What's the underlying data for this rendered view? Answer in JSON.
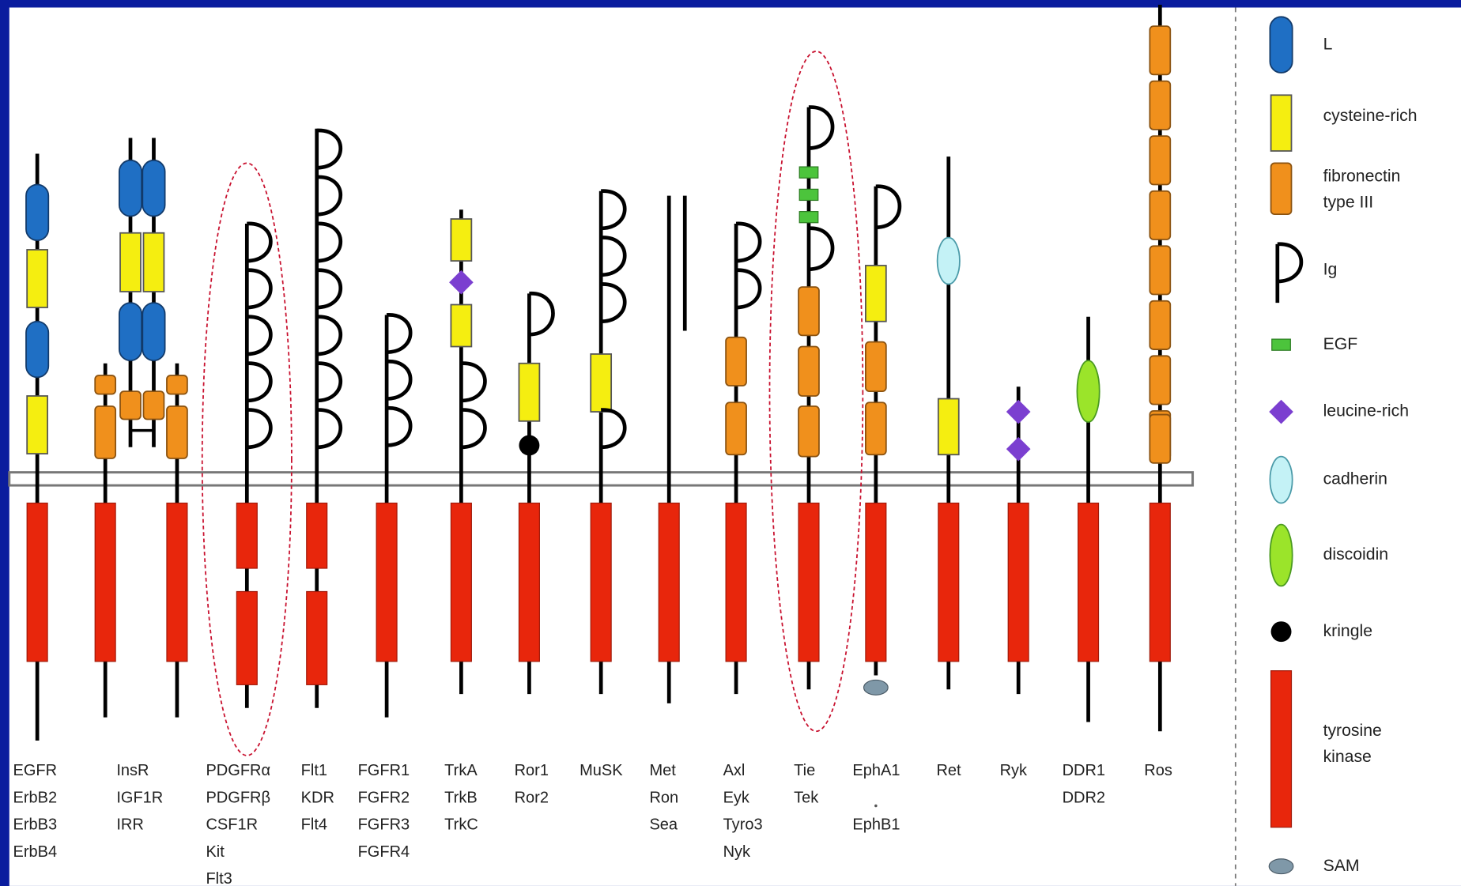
{
  "families": [
    {
      "labels": [
        "EGFR",
        "ErbB2",
        "ErbB3",
        "ErbB4"
      ]
    },
    {
      "labels": [
        "InsR",
        "IGF1R",
        "IRR"
      ]
    },
    {
      "labels": [
        "PDGFRα",
        "PDGFRβ",
        "CSF1R",
        "Kit",
        "Flt3"
      ]
    },
    {
      "labels": [
        "Flt1",
        "KDR",
        "Flt4"
      ]
    },
    {
      "labels": [
        "FGFR1",
        "FGFR2",
        "FGFR3",
        "FGFR4"
      ]
    },
    {
      "labels": [
        "TrkA",
        "TrkB",
        "TrkC"
      ]
    },
    {
      "labels": [
        "Ror1",
        "Ror2"
      ]
    },
    {
      "labels": [
        "MuSK"
      ]
    },
    {
      "labels": [
        "Met",
        "Ron",
        "Sea"
      ]
    },
    {
      "labels": [
        "Axl",
        "Eyk",
        "Tyro3",
        "Nyk"
      ]
    },
    {
      "labels": [
        "Tie",
        "Tek"
      ]
    },
    {
      "labels": [
        "EphA1",
        "EphB1"
      ]
    },
    {
      "labels": [
        "Ret"
      ]
    },
    {
      "labels": [
        "Ryk"
      ]
    },
    {
      "labels": [
        "DDR1",
        "DDR2"
      ]
    },
    {
      "labels": [
        "Ros"
      ]
    }
  ],
  "legend": [
    {
      "label": [
        "L"
      ]
    },
    {
      "label": [
        "cysteine-rich"
      ]
    },
    {
      "label": [
        "fibronectin",
        "type III"
      ]
    },
    {
      "label": [
        "Ig"
      ]
    },
    {
      "label": [
        "EGF"
      ]
    },
    {
      "label": [
        "leucine-rich"
      ]
    },
    {
      "label": [
        "cadherin"
      ]
    },
    {
      "label": [
        "discoidin"
      ]
    },
    {
      "label": [
        "kringle"
      ]
    },
    {
      "label": [
        "tyrosine",
        "kinase"
      ]
    },
    {
      "label": [
        "SAM"
      ]
    }
  ]
}
